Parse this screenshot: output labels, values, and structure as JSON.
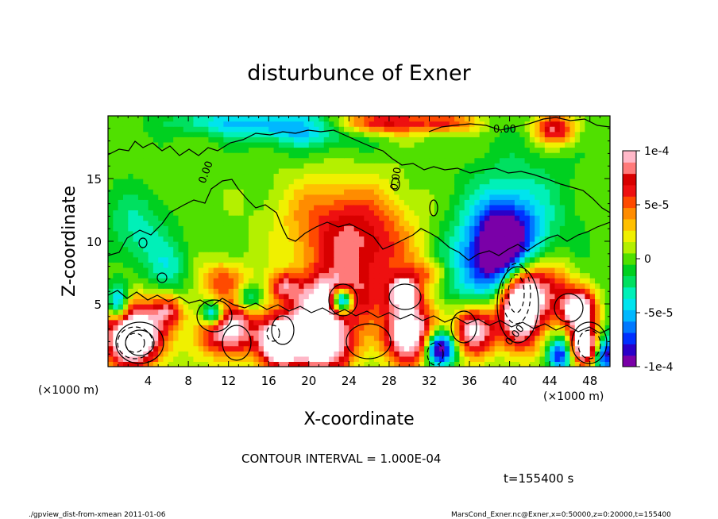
{
  "chart_data": {
    "type": "heatmap",
    "title": "disturbunce of Exner",
    "xlabel": "X-coordinate",
    "ylabel": "Z-coordinate",
    "x_unit_left": "(×1000 m)",
    "x_unit_right": "(×1000 m)",
    "xlim": [
      0,
      50
    ],
    "ylim": [
      0,
      20
    ],
    "x_ticks": [
      4,
      8,
      12,
      16,
      20,
      24,
      28,
      32,
      36,
      40,
      44,
      48
    ],
    "y_ticks": [
      5,
      10,
      15
    ],
    "colorbar": {
      "range": [
        -0.0001,
        0.0001
      ],
      "tick_values": [
        0.0001,
        5e-05,
        0,
        -5e-05,
        -0.0001
      ],
      "tick_labels": [
        "1e-4",
        "5e-5",
        "0",
        "-5e-5",
        "-1e-4"
      ],
      "colors": [
        "#7a00a8",
        "#2a00c8",
        "#0030ff",
        "#0078ff",
        "#00b8ff",
        "#00e4ee",
        "#00f0b8",
        "#00e060",
        "#00d020",
        "#50e000",
        "#b4f000",
        "#f0f000",
        "#ffc000",
        "#ff8c00",
        "#ff4a00",
        "#ee1010",
        "#d80000",
        "#ff7a7a",
        "#ffb8c8"
      ]
    },
    "contour_labels": [
      "0.00",
      "0.00",
      "0.00",
      "0.00"
    ],
    "contour_interval_text": "CONTOUR INTERVAL = 1.000E-04",
    "grid": false,
    "blobs": [
      {
        "x": 25.0,
        "z": 9.0,
        "sx": 6.0,
        "sz": 3.5,
        "v": 7e-05
      },
      {
        "x": 22.0,
        "z": 5.5,
        "sx": 4.0,
        "sz": 2.0,
        "v": 9e-05
      },
      {
        "x": 21.0,
        "z": 2.0,
        "sx": 3.5,
        "sz": 2.5,
        "v": 0.00014
      },
      {
        "x": 23.0,
        "z": 12.5,
        "sx": 6.0,
        "sz": 3.0,
        "v": 4e-05
      },
      {
        "x": 17.0,
        "z": 2.0,
        "sx": 2.0,
        "sz": 2.0,
        "v": 0.00012
      },
      {
        "x": 12.0,
        "z": 3.0,
        "sx": 3.0,
        "sz": 2.2,
        "v": 0.00011
      },
      {
        "x": 10.5,
        "z": 4.2,
        "sx": 1.1,
        "sz": 1.0,
        "v": -0.0001
      },
      {
        "x": 23.3,
        "z": 5.3,
        "sx": 1.1,
        "sz": 1.0,
        "v": -0.00016
      },
      {
        "x": 30.0,
        "z": 2.8,
        "sx": 2.6,
        "sz": 2.6,
        "v": 0.00013
      },
      {
        "x": 29.5,
        "z": 6.0,
        "sx": 1.5,
        "sz": 1.2,
        "v": 0.0001
      },
      {
        "x": 33.0,
        "z": 1.5,
        "sx": 1.5,
        "sz": 1.4,
        "v": -0.00012
      },
      {
        "x": 36.5,
        "z": 3.0,
        "sx": 2.0,
        "sz": 2.0,
        "v": 0.00012
      },
      {
        "x": 39.5,
        "z": 9.5,
        "sx": 3.0,
        "sz": 3.5,
        "v": -0.00011
      },
      {
        "x": 41.0,
        "z": 5.0,
        "sx": 2.2,
        "sz": 3.3,
        "v": 0.00016
      },
      {
        "x": 44.0,
        "z": 6.0,
        "sx": 2.5,
        "sz": 2.5,
        "v": 7e-05
      },
      {
        "x": 47.0,
        "z": 4.5,
        "sx": 1.6,
        "sz": 1.6,
        "v": 0.00013
      },
      {
        "x": 45.0,
        "z": 1.0,
        "sx": 1.2,
        "sz": 1.3,
        "v": -9e-05
      },
      {
        "x": 49.5,
        "z": 1.0,
        "sx": 1.2,
        "sz": 1.5,
        "v": -0.0001
      },
      {
        "x": 47.5,
        "z": 1.6,
        "sx": 1.5,
        "sz": 1.5,
        "v": 0.00014
      },
      {
        "x": 2.5,
        "z": 2.5,
        "sx": 3.0,
        "sz": 2.5,
        "v": 0.00016
      },
      {
        "x": 1.0,
        "z": 5.0,
        "sx": 1.0,
        "sz": 1.5,
        "v": -8e-05
      },
      {
        "x": 6.0,
        "z": 4.5,
        "sx": 1.5,
        "sz": 1.2,
        "v": 6e-05
      },
      {
        "x": 11.5,
        "z": 7.0,
        "sx": 2.5,
        "sz": 1.5,
        "v": 5e-05
      },
      {
        "x": 3.0,
        "z": 11.0,
        "sx": 3.0,
        "sz": 3.0,
        "v": -3e-05
      },
      {
        "x": 6.0,
        "z": 8.0,
        "sx": 2.0,
        "sz": 2.0,
        "v": -3e-05
      },
      {
        "x": 27.0,
        "z": 19.5,
        "sx": 5.0,
        "sz": 1.0,
        "v": 8e-05
      },
      {
        "x": 20.0,
        "z": 19.0,
        "sx": 6.0,
        "sz": 1.5,
        "v": -5e-05
      },
      {
        "x": 12.0,
        "z": 19.5,
        "sx": 6.0,
        "sz": 1.0,
        "v": -4e-05
      },
      {
        "x": 34.0,
        "z": 19.5,
        "sx": 3.0,
        "sz": 0.8,
        "v": 5e-05
      },
      {
        "x": 44.5,
        "z": 19.0,
        "sx": 2.0,
        "sz": 1.2,
        "v": 8e-05
      },
      {
        "x": 36.0,
        "z": 8.0,
        "sx": 4.0,
        "sz": 4.0,
        "v": -4e-05
      },
      {
        "x": 41.0,
        "z": 12.0,
        "sx": 5.0,
        "sz": 5.0,
        "v": -3e-05
      },
      {
        "x": 32.0,
        "z": 7.5,
        "sx": 2.0,
        "sz": 1.0,
        "v": 4e-05
      },
      {
        "x": 14.0,
        "z": 5.5,
        "sx": 1.2,
        "sz": 1.0,
        "v": -5e-05
      },
      {
        "x": 17.5,
        "z": 6.5,
        "sx": 1.3,
        "sz": 1.0,
        "v": 6e-05
      }
    ]
  },
  "footer": {
    "time_label": "t=155400 s",
    "script_label": "./gpview_dist-from-xmean  2011-01-06",
    "source_label": "MarsCond_Exner.nc@Exner,x=0:50000,z=0:20000,t=155400"
  }
}
